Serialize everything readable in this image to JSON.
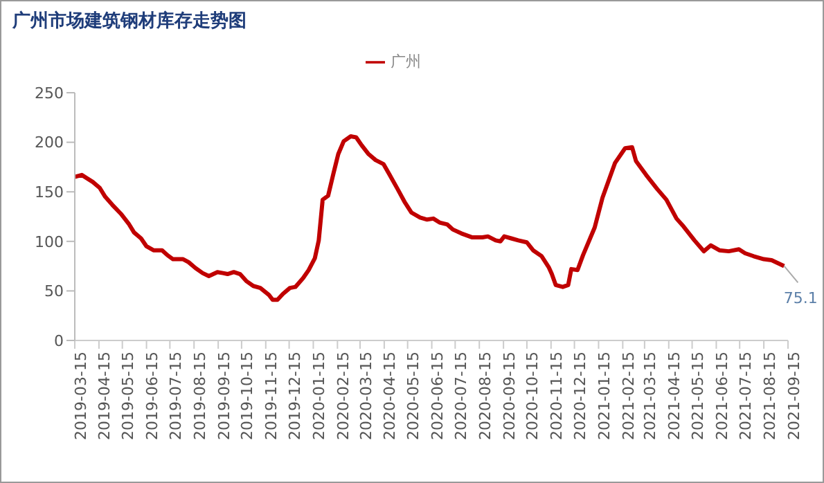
{
  "chart_data": {
    "type": "line",
    "title": "广州市场建筑钢材库存走势图",
    "x": [
      "2019-03-15",
      "2019-03-24",
      "2019-04-07",
      "2019-04-16",
      "2019-04-23",
      "2019-05-02",
      "2019-05-13",
      "2019-05-23",
      "2019-05-30",
      "2019-06-08",
      "2019-06-15",
      "2019-06-24",
      "2019-07-05",
      "2019-07-12",
      "2019-07-19",
      "2019-08-01",
      "2019-08-08",
      "2019-08-17",
      "2019-08-26",
      "2019-09-03",
      "2019-09-14",
      "2019-09-21",
      "2019-09-27",
      "2019-10-05",
      "2019-10-13",
      "2019-10-21",
      "2019-10-30",
      "2019-11-08",
      "2019-11-19",
      "2019-11-24",
      "2019-11-30",
      "2019-12-07",
      "2019-12-16",
      "2019-12-23",
      "2020-01-02",
      "2020-01-09",
      "2020-01-17",
      "2020-01-22",
      "2020-01-27",
      "2020-02-03",
      "2020-02-10",
      "2020-02-16",
      "2020-02-23",
      "2020-03-03",
      "2020-03-10",
      "2020-03-17",
      "2020-03-26",
      "2020-04-04",
      "2020-04-14",
      "2020-04-22",
      "2020-05-02",
      "2020-05-11",
      "2020-05-20",
      "2020-05-31",
      "2020-06-09",
      "2020-06-17",
      "2020-06-25",
      "2020-07-05",
      "2020-07-12",
      "2020-07-23",
      "2020-08-06",
      "2020-08-19",
      "2020-08-26",
      "2020-09-05",
      "2020-09-11",
      "2020-09-16",
      "2020-09-25",
      "2020-10-04",
      "2020-10-15",
      "2020-10-23",
      "2020-11-03",
      "2020-11-12",
      "2020-11-16",
      "2020-11-21",
      "2020-11-30",
      "2020-12-07",
      "2020-12-11",
      "2020-12-19",
      "2020-12-26",
      "2021-01-10",
      "2021-01-20",
      "2021-02-05",
      "2021-02-18",
      "2021-02-27",
      "2021-03-04",
      "2021-03-17",
      "2021-03-31",
      "2021-04-12",
      "2021-04-25",
      "2021-05-04",
      "2021-05-18",
      "2021-05-30",
      "2021-06-08",
      "2021-06-19",
      "2021-07-01",
      "2021-07-14",
      "2021-07-22",
      "2021-08-02",
      "2021-08-15",
      "2021-08-25",
      "2021-09-10"
    ],
    "series": [
      {
        "name": "广州",
        "color": "#c00000",
        "values": [
          165,
          167,
          160,
          154,
          145,
          137,
          128,
          118,
          109,
          103,
          95,
          91,
          91,
          86,
          82,
          82,
          79,
          73,
          68,
          65,
          69,
          68,
          67,
          69,
          67,
          60,
          55,
          53,
          46,
          41,
          41,
          47,
          53,
          54,
          63,
          71,
          83,
          101,
          142,
          146,
          169,
          188,
          201,
          206,
          205,
          197,
          188,
          182,
          178,
          167,
          153,
          140,
          129,
          124,
          122,
          123,
          119,
          117,
          112,
          108,
          104,
          104,
          105,
          101,
          100,
          105,
          103,
          101,
          99,
          91,
          85,
          74,
          67,
          56,
          54,
          56,
          72,
          71,
          86,
          114,
          144,
          179,
          194,
          195,
          181,
          167,
          153,
          142,
          123,
          115,
          101,
          90,
          96,
          91,
          90,
          92,
          88,
          85,
          82,
          81,
          75.1
        ]
      }
    ],
    "xlim": [
      "2019-03-15",
      "2021-09-15"
    ],
    "xticks": [
      "2019-03-15",
      "2019-04-15",
      "2019-05-15",
      "2019-06-15",
      "2019-07-15",
      "2019-08-15",
      "2019-09-15",
      "2019-10-15",
      "2019-11-15",
      "2019-12-15",
      "2020-01-15",
      "2020-02-15",
      "2020-03-15",
      "2020-04-15",
      "2020-05-15",
      "2020-06-15",
      "2020-07-15",
      "2020-08-15",
      "2020-09-15",
      "2020-10-15",
      "2020-11-15",
      "2020-12-15",
      "2021-01-15",
      "2021-02-15",
      "2021-03-15",
      "2021-04-15",
      "2021-05-15",
      "2021-06-15",
      "2021-07-15",
      "2021-08-15",
      "2021-09-15"
    ],
    "ylim": [
      0,
      250
    ],
    "yticks": [
      0,
      50,
      100,
      150,
      200,
      250
    ],
    "annotations": [
      {
        "text": "75.1",
        "x": "2021-09-10",
        "y": 75.1
      }
    ],
    "legend": "top",
    "grid": false,
    "marker": "none",
    "line_style": "solid"
  }
}
